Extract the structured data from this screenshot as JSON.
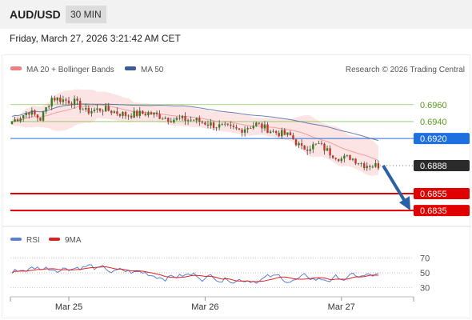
{
  "header": {
    "symbol": "AUD/USD",
    "timeframe": "30 MIN",
    "datetime": "Friday, March 27, 2026 3:21:42 AM CET"
  },
  "legend": {
    "ma20": {
      "label": "MA 20 + Bollinger Bands",
      "color": "#f08080"
    },
    "ma50": {
      "label": "MA 50",
      "color": "#3a5a9a"
    },
    "credit": "Research © 2026 Trading Central"
  },
  "rsi_legend": {
    "rsi": {
      "label": "RSI",
      "color": "#5b7fd6"
    },
    "ma9": {
      "label": "9MA",
      "color": "#e02020"
    }
  },
  "chart_data": {
    "type": "candlestick",
    "price_range": [
      0.682,
      0.699
    ],
    "x_labels": [
      {
        "label": "Mar 25",
        "index": 20
      },
      {
        "label": "Mar 26",
        "index": 68
      },
      {
        "label": "Mar 27",
        "index": 116
      }
    ],
    "levels": [
      {
        "value": 0.696,
        "label": "0.6960",
        "kind": "resistance"
      },
      {
        "value": 0.694,
        "label": "0.6940",
        "kind": "resistance"
      },
      {
        "value": 0.692,
        "label": "0.6920",
        "kind": "pivot"
      },
      {
        "value": 0.6888,
        "label": "0.6888",
        "kind": "last"
      },
      {
        "value": 0.6855,
        "label": "0.6855",
        "kind": "support"
      },
      {
        "value": 0.6835,
        "label": "0.6835",
        "kind": "support"
      }
    ],
    "forecast": {
      "from": 0.6888,
      "to": 0.6835
    },
    "rsi": {
      "ticks": [
        {
          "label": "70",
          "value": 70
        },
        {
          "label": "50",
          "value": 50
        },
        {
          "label": "30",
          "value": 30
        }
      ]
    }
  }
}
